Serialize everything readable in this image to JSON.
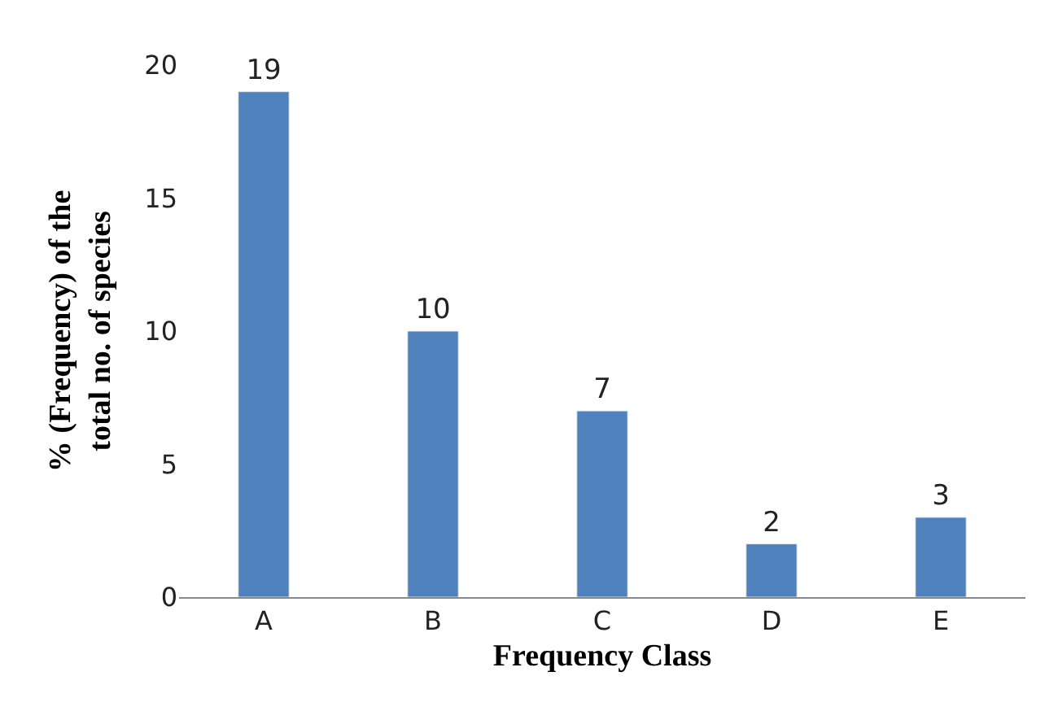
{
  "chart_data": {
    "type": "bar",
    "xlabel": "Frequency Class",
    "ylabel": "% (Frequency) of the\ntotal no. of species",
    "categories": [
      "A",
      "B",
      "C",
      "D",
      "E"
    ],
    "values": [
      19,
      10,
      7,
      2,
      3
    ],
    "color": "#4f81bd",
    "ylim": [
      0,
      20
    ],
    "yticks": [
      0,
      5,
      10,
      15,
      20
    ],
    "legend": false,
    "data_labels": true
  }
}
